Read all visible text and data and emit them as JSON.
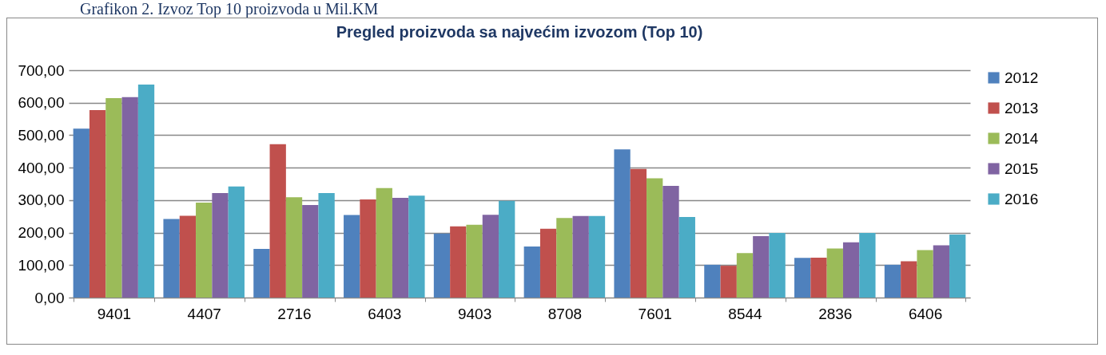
{
  "chart_data": {
    "type": "bar",
    "title": "Pregled proizvoda sa najvećim izvozom (Top 10)",
    "annotations": [
      "Grafikon 2. Izvoz Top 10 proizvoda u Mil.KM"
    ],
    "categories": [
      "9401",
      "4407",
      "2716",
      "6403",
      "9403",
      "8708",
      "7601",
      "8544",
      "2836",
      "6406"
    ],
    "series": [
      {
        "name": "2012",
        "color": "#4f81bd",
        "values": [
          520,
          242,
          150,
          254,
          197,
          157,
          456,
          101,
          122,
          101
        ]
      },
      {
        "name": "2013",
        "color": "#c0504d",
        "values": [
          577,
          252,
          472,
          302,
          219,
          212,
          396,
          98,
          123,
          112
        ]
      },
      {
        "name": "2014",
        "color": "#9bbb59",
        "values": [
          614,
          292,
          309,
          337,
          224,
          245,
          367,
          137,
          151,
          146
        ]
      },
      {
        "name": "2015",
        "color": "#8064a2",
        "values": [
          617,
          322,
          285,
          307,
          255,
          251,
          344,
          189,
          170,
          161
        ]
      },
      {
        "name": "2016",
        "color": "#4bacc6",
        "values": [
          656,
          342,
          322,
          314,
          298,
          251,
          248,
          199,
          199,
          194
        ]
      }
    ],
    "ylim": [
      0,
      700
    ],
    "yticks": [
      {
        "value": 0,
        "label": "0,00"
      },
      {
        "value": 100,
        "label": "100,00"
      },
      {
        "value": 200,
        "label": "200,00"
      },
      {
        "value": 300,
        "label": "300,00"
      },
      {
        "value": 400,
        "label": "400,00"
      },
      {
        "value": 500,
        "label": "500,00"
      },
      {
        "value": 600,
        "label": "600,00"
      },
      {
        "value": 700,
        "label": "700,00"
      }
    ],
    "grid": "y",
    "legend": "right"
  }
}
